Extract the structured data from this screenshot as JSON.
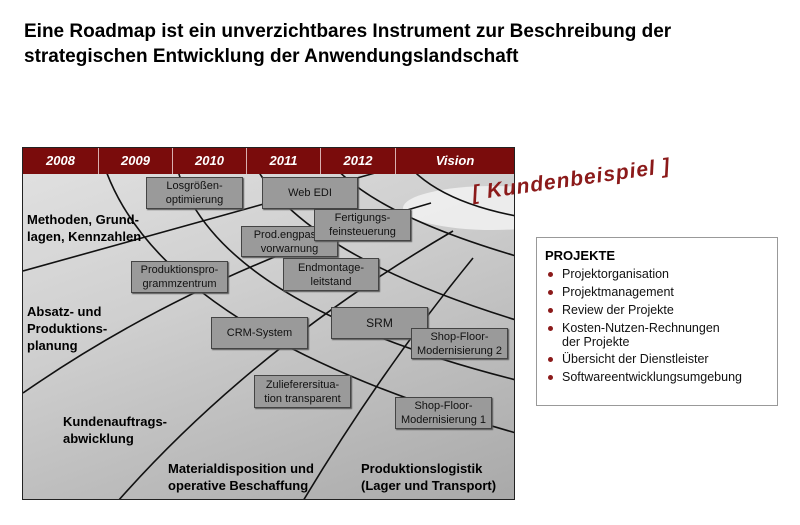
{
  "title": {
    "line1": "Eine Roadmap ist ein unverzichtbares Instrument zur Beschreibung der",
    "line2": "strategischen Entwicklung der Anwendungslandschaft"
  },
  "roadmap": {
    "columns": [
      "2008",
      "2009",
      "2010",
      "2011",
      "2012",
      "Vision"
    ],
    "areas": [
      {
        "l1": "Methoden, Grund-",
        "l2": "lagen, Kennzahlen"
      },
      {
        "l1": "Absatz- und",
        "l2": "Produktions-",
        "l3": "planung"
      },
      {
        "l1": "Kundenauftrags-",
        "l2": "abwicklung"
      },
      {
        "l1": "Materialdisposition und",
        "l2": "operative Beschaffung"
      },
      {
        "l1": "Produktionslogistik",
        "l2": "(Lager und Transport)"
      }
    ],
    "projects": [
      {
        "l1": "Losgrößen-",
        "l2": "optimierung"
      },
      {
        "l1": "Web EDI",
        "l2": ""
      },
      {
        "l1": "Fertigungs-",
        "l2": "feinsteuerung"
      },
      {
        "l1": "Prod.engpass-",
        "l2": "vorwarnung"
      },
      {
        "l1": "Produktionspro-",
        "l2": "grammzentrum"
      },
      {
        "l1": "Endmontage-",
        "l2": "leitstand"
      },
      {
        "l1": "SRM",
        "l2": ""
      },
      {
        "l1": "CRM-System",
        "l2": ""
      },
      {
        "l1": "Shop-Floor-",
        "l2": "Modernisierung 2"
      },
      {
        "l1": "Zulieferersitua-",
        "l2": "tion transparent"
      },
      {
        "l1": "Shop-Floor-",
        "l2": "Modernisierung 1"
      }
    ],
    "header_color": "#7a0c0c"
  },
  "stamp": "[ Kundenbeispiel ]",
  "panel": {
    "heading": "PROJEKTE",
    "items": [
      "Projektorganisation",
      "Projektmanagement",
      "Review der Projekte",
      "Kosten-Nutzen-Rechnungen",
      "Übersicht der Dienstleister",
      "Softwareentwicklungsumgebung"
    ],
    "item3_line2": "der Projekte",
    "bullet_color": "#8b1a1a"
  }
}
